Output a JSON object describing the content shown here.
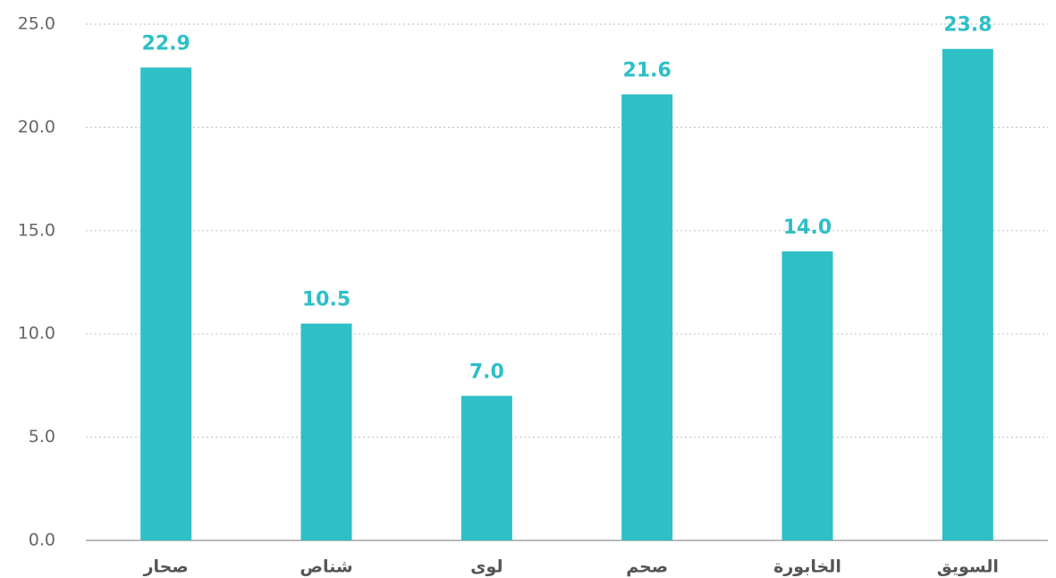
{
  "chart_data": {
    "type": "bar",
    "categories": [
      "صحار",
      "شناص",
      "لوى",
      "صحم",
      "الخابورة",
      "السويق"
    ],
    "values": [
      22.9,
      10.5,
      7.0,
      21.6,
      14.0,
      23.8
    ],
    "value_labels": [
      "22.9",
      "10.5",
      "7.0",
      "21.6",
      "14.0",
      "23.8"
    ],
    "color": "#2ebfc7",
    "ylim": [
      0,
      25
    ],
    "yticks": [
      {
        "value": 0,
        "label": "0.0"
      },
      {
        "value": 5,
        "label": "5.0"
      },
      {
        "value": 10,
        "label": "10.0"
      },
      {
        "value": 15,
        "label": "15.0"
      },
      {
        "value": 20,
        "label": "20.0"
      },
      {
        "value": 25,
        "label": "25.0"
      }
    ],
    "grid": true
  }
}
